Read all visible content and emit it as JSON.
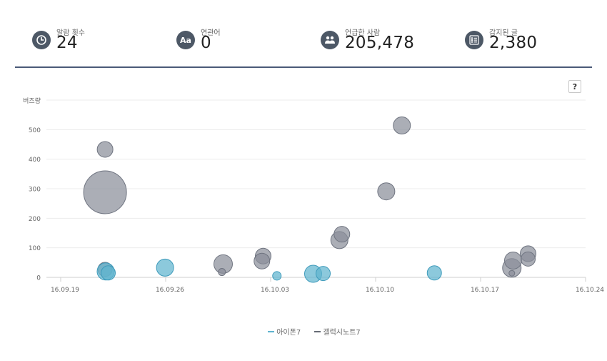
{
  "stats": [
    {
      "label": "알람 횟수",
      "value": "24",
      "icon": "clock-icon"
    },
    {
      "label": "연관어",
      "value": "0",
      "icon": "aa-text-icon"
    },
    {
      "label": "언급한 사람",
      "value": "205,478",
      "icon": "people-icon"
    },
    {
      "label": "감지된 글",
      "value": "2,380",
      "icon": "list-icon"
    }
  ],
  "help_label": "?",
  "colors": {
    "accent_divider": "#4a5a78",
    "iphone": "#5fb4cf",
    "galaxy": "#8a8f9a",
    "icon_bg": "#4d5866"
  },
  "chart_data": {
    "type": "scatter",
    "ylabel": "버즈량",
    "ylim": [
      0,
      600
    ],
    "yticks": [
      0,
      100,
      200,
      300,
      400,
      500
    ],
    "xlim": [
      "2016-09-19",
      "2016-10-24"
    ],
    "xticks": [
      "16.09.19",
      "16.09.26",
      "16.10.03",
      "16.10.10",
      "16.10.17",
      "16.10.24"
    ],
    "grid": true,
    "legend_position": "bottom-center",
    "series": [
      {
        "name": "아이폰7",
        "color": "#5fb4cf",
        "points": [
          {
            "x": "2016-09-22 00:00",
            "y": 20,
            "size": 12
          },
          {
            "x": "2016-09-22 04:00",
            "y": 15,
            "size": 10
          },
          {
            "x": "2016-09-25 23:00",
            "y": 33,
            "size": 12
          },
          {
            "x": "2016-10-03 10:00",
            "y": 5,
            "size": 6
          },
          {
            "x": "2016-10-05 20:00",
            "y": 12,
            "size": 12
          },
          {
            "x": "2016-10-06 12:00",
            "y": 13,
            "size": 10
          },
          {
            "x": "2016-10-13 22:00",
            "y": 15,
            "size": 10
          }
        ]
      },
      {
        "name": "갤럭시노트7",
        "color": "#8a8f9a",
        "points": [
          {
            "x": "2016-09-21 23:00",
            "y": 433,
            "size": 11
          },
          {
            "x": "2016-09-21 23:00",
            "y": 288,
            "size": 30
          },
          {
            "x": "2016-09-21 23:00",
            "y": 27,
            "size": 10
          },
          {
            "x": "2016-09-29 20:00",
            "y": 45,
            "size": 13
          },
          {
            "x": "2016-09-29 18:00",
            "y": 18,
            "size": 5
          },
          {
            "x": "2016-10-02 12:00",
            "y": 72,
            "size": 11
          },
          {
            "x": "2016-10-02 10:00",
            "y": 55,
            "size": 11
          },
          {
            "x": "2016-10-07 14:00",
            "y": 126,
            "size": 12
          },
          {
            "x": "2016-10-07 18:00",
            "y": 146,
            "size": 11
          },
          {
            "x": "2016-10-10 17:00",
            "y": 291,
            "size": 12
          },
          {
            "x": "2016-10-11 18:00",
            "y": 514,
            "size": 12
          },
          {
            "x": "2016-10-19 04:00",
            "y": 57,
            "size": 12
          },
          {
            "x": "2016-10-19 02:00",
            "y": 32,
            "size": 13
          },
          {
            "x": "2016-10-19 02:00",
            "y": 14,
            "size": 4
          },
          {
            "x": "2016-10-20 04:00",
            "y": 80,
            "size": 11
          },
          {
            "x": "2016-10-20 04:00",
            "y": 62,
            "size": 10
          }
        ]
      }
    ]
  }
}
